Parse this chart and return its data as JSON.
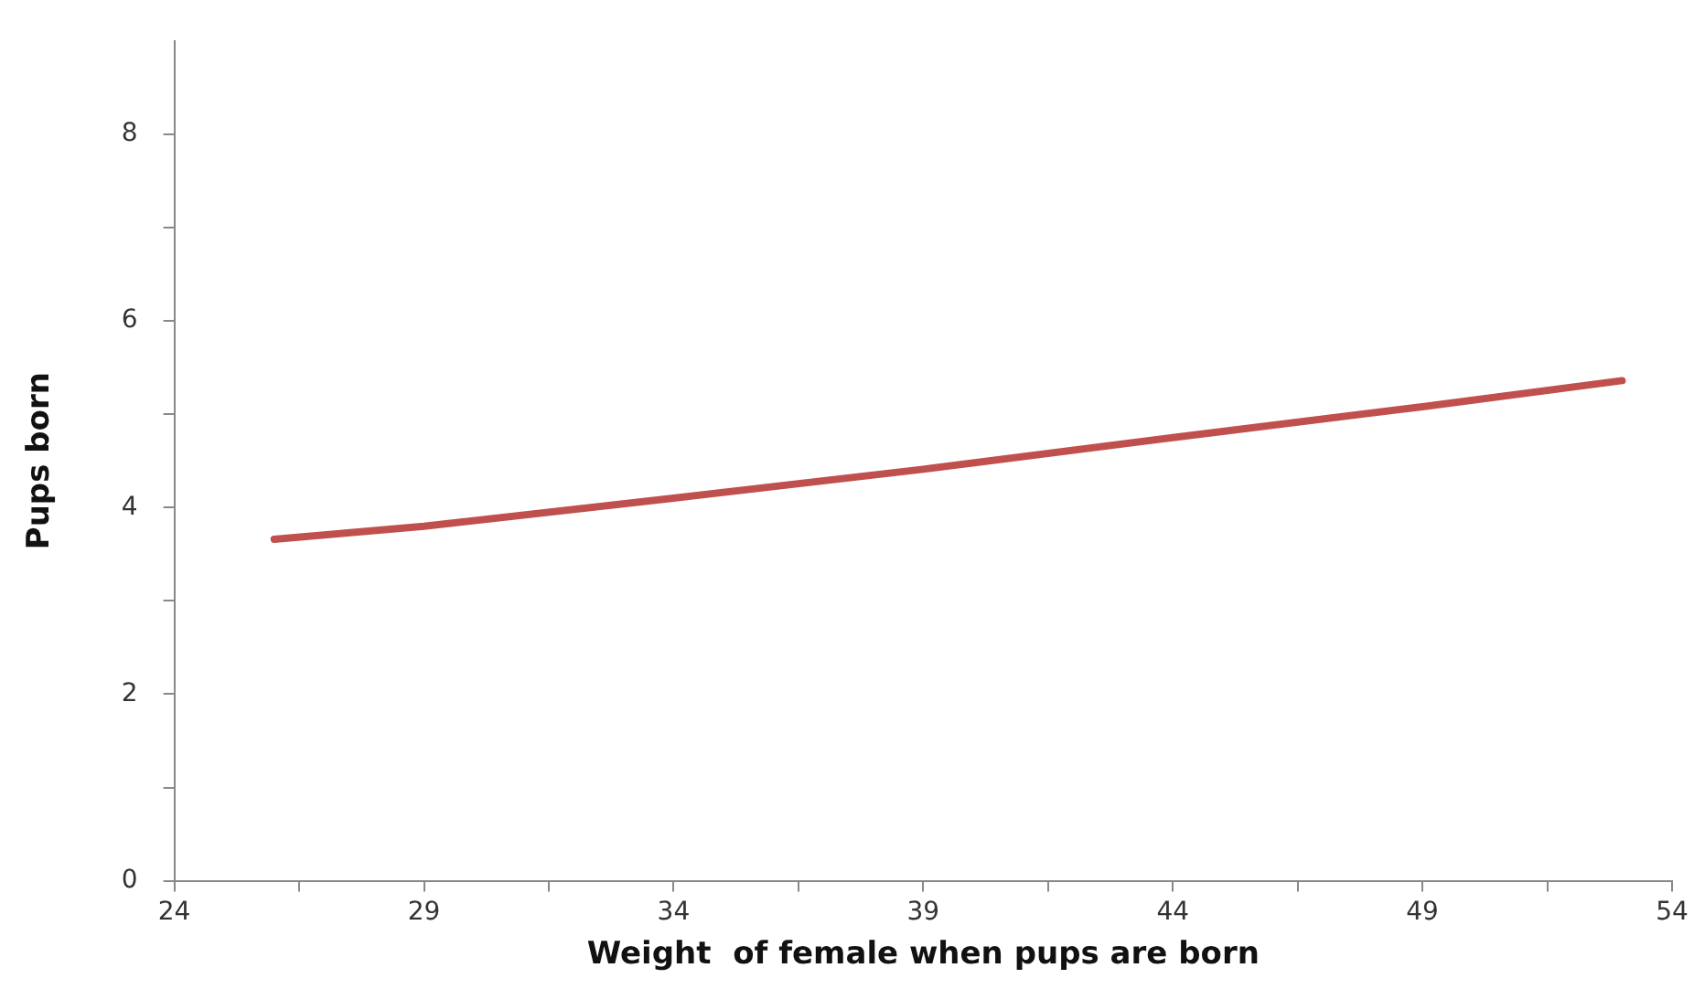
{
  "chart_data": {
    "type": "line",
    "xlabel": "Weight  of female when pups are born",
    "ylabel": "Pups born",
    "x": [
      26,
      29,
      34,
      39,
      44,
      49,
      53
    ],
    "series": [
      {
        "color": "#c0504d",
        "values": [
          3.66,
          3.8,
          4.1,
          4.41,
          4.75,
          5.08,
          5.36
        ]
      }
    ],
    "xlim": [
      24,
      54
    ],
    "xticks": [
      24,
      {
        "value": 26.5,
        "label": null
      },
      29,
      {
        "value": 31.5,
        "label": null
      },
      34,
      {
        "value": 36.5,
        "label": null
      },
      39,
      {
        "value": 41.5,
        "label": null
      },
      44,
      {
        "value": 46.5,
        "label": null
      },
      49,
      {
        "value": 51.5,
        "label": null
      },
      54
    ],
    "ylim": [
      0,
      9
    ],
    "yticks": [
      0,
      {
        "value": 1,
        "label": null
      },
      2,
      {
        "value": 3,
        "label": null
      },
      4,
      {
        "value": 5,
        "label": null
      },
      6,
      {
        "value": 7,
        "label": null
      },
      8
    ],
    "grid": false,
    "legend": false,
    "marker": "none",
    "line_style": "solid"
  }
}
